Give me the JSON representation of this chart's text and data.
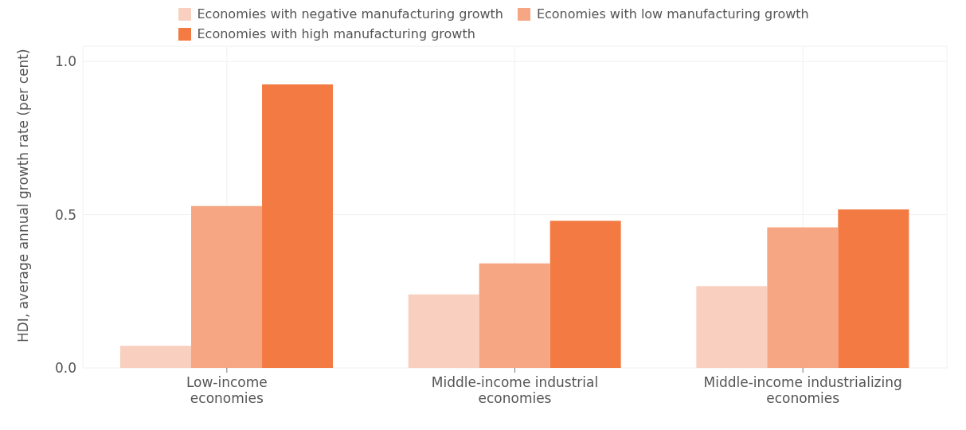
{
  "chart_data": {
    "type": "bar",
    "ylabel": "HDI, average annual growth rate (per cent)",
    "categories": [
      "Low-income economies",
      "Middle-income industrial economies",
      "Middle-income industrializing economies"
    ],
    "series": [
      {
        "name": "Economies with negative manufacturing growth",
        "color": "#f9d0bf",
        "values": [
          0.072,
          0.24,
          0.267
        ]
      },
      {
        "name": "Economies with low manufacturing growth",
        "color": "#f6a682",
        "values": [
          0.528,
          0.341,
          0.459
        ]
      },
      {
        "name": "Economies with high manufacturing growth",
        "color": "#f37b43",
        "values": [
          0.925,
          0.48,
          0.517
        ]
      }
    ],
    "ylim": [
      0,
      1.05
    ],
    "yticks": [
      {
        "value": 0,
        "label": "0.0"
      },
      {
        "value": 0.5,
        "label": "0.5"
      },
      {
        "value": 1,
        "label": "1.0"
      }
    ],
    "grid": true,
    "legend": "top"
  }
}
